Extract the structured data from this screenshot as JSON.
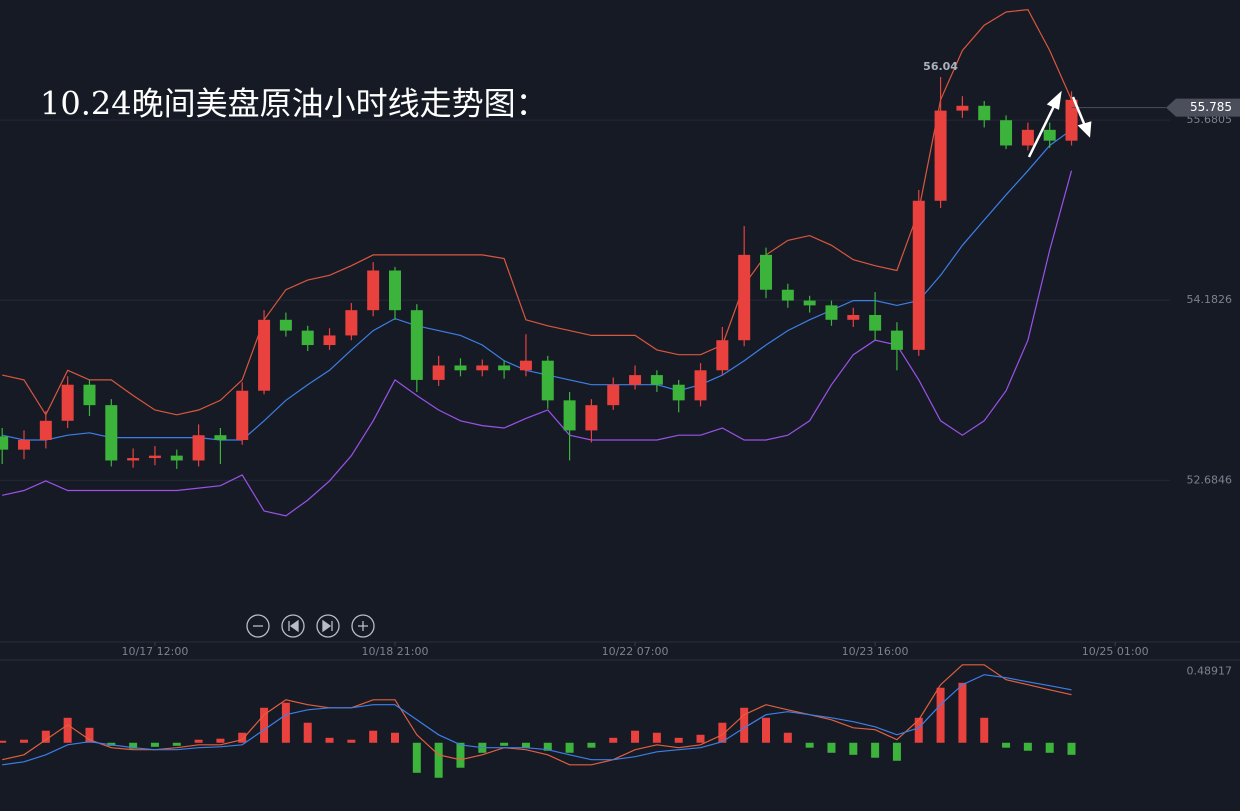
{
  "chart_data": [
    {
      "type": "candlestick",
      "title": "10.24晚间美盘原油小时线走势图：",
      "up_color": "#e8413e",
      "down_color": "#3cb43c",
      "open": [
        53.05,
        52.94,
        53.02,
        53.18,
        53.48,
        53.31,
        52.85,
        52.87,
        52.89,
        52.85,
        53.06,
        53.02,
        53.43,
        54.02,
        53.93,
        53.81,
        53.89,
        54.1,
        54.43,
        54.1,
        53.52,
        53.64,
        53.6,
        53.64,
        53.6,
        53.68,
        53.35,
        53.1,
        53.31,
        53.48,
        53.56,
        53.48,
        53.35,
        53.6,
        53.85,
        54.56,
        54.27,
        54.18,
        54.14,
        54.02,
        54.06,
        53.93,
        53.77,
        55.01,
        55.76,
        55.8,
        55.68,
        55.47,
        55.6,
        55.51
      ],
      "high": [
        53.12,
        53.1,
        53.26,
        53.55,
        53.52,
        53.36,
        52.95,
        52.97,
        52.94,
        53.15,
        53.12,
        53.5,
        54.1,
        54.08,
        53.97,
        53.95,
        54.16,
        54.5,
        54.46,
        54.15,
        53.72,
        53.7,
        53.69,
        53.68,
        53.9,
        53.72,
        53.42,
        53.36,
        53.54,
        53.64,
        53.6,
        53.52,
        53.66,
        53.96,
        54.8,
        54.62,
        54.32,
        54.22,
        54.18,
        54.12,
        54.25,
        54.0,
        55.1,
        56.04,
        55.88,
        55.84,
        55.72,
        55.66,
        55.66,
        55.92
      ],
      "low": [
        52.82,
        52.86,
        52.95,
        53.12,
        53.22,
        52.8,
        52.79,
        52.81,
        52.78,
        52.8,
        52.82,
        52.98,
        53.4,
        53.88,
        53.76,
        53.77,
        53.85,
        54.05,
        54.02,
        53.42,
        53.47,
        53.55,
        53.55,
        53.53,
        53.55,
        53.28,
        52.85,
        53.0,
        53.27,
        53.44,
        53.42,
        53.25,
        53.3,
        53.56,
        53.8,
        54.2,
        54.12,
        54.08,
        53.97,
        53.96,
        53.85,
        53.6,
        53.72,
        54.95,
        55.7,
        55.62,
        55.44,
        55.43,
        55.45,
        55.47
      ],
      "close": [
        52.94,
        53.02,
        53.18,
        53.48,
        53.31,
        52.85,
        52.87,
        52.89,
        52.85,
        53.06,
        53.02,
        53.43,
        54.02,
        53.93,
        53.81,
        53.89,
        54.1,
        54.43,
        54.1,
        53.52,
        53.64,
        53.6,
        53.64,
        53.6,
        53.68,
        53.35,
        53.1,
        53.31,
        53.48,
        53.56,
        53.48,
        53.35,
        53.6,
        53.85,
        54.56,
        54.27,
        54.18,
        54.14,
        54.02,
        54.06,
        53.93,
        53.77,
        55.01,
        55.76,
        55.8,
        55.68,
        55.47,
        55.6,
        55.51,
        55.85
      ],
      "lines": [
        {
          "color": "#d9573e",
          "values": [
            53.56,
            53.52,
            53.23,
            53.6,
            53.52,
            53.52,
            53.39,
            53.27,
            53.23,
            53.27,
            53.35,
            53.52,
            54.02,
            54.27,
            54.35,
            54.39,
            54.47,
            54.56,
            54.56,
            54.56,
            54.56,
            54.56,
            54.56,
            54.53,
            54.02,
            53.97,
            53.93,
            53.89,
            53.89,
            53.89,
            53.77,
            53.73,
            53.73,
            53.81,
            54.31,
            54.56,
            54.68,
            54.72,
            54.64,
            54.52,
            54.47,
            54.43,
            54.93,
            55.85,
            56.26,
            56.47,
            56.58,
            56.6,
            56.26,
            55.85
          ]
        },
        {
          "color": "#3d7fe6",
          "values": [
            53.06,
            53.02,
            53.02,
            53.06,
            53.08,
            53.04,
            53.04,
            53.04,
            53.04,
            53.04,
            53.02,
            53.02,
            53.18,
            53.35,
            53.48,
            53.6,
            53.77,
            53.93,
            54.03,
            53.97,
            53.93,
            53.89,
            53.81,
            53.68,
            53.6,
            53.56,
            53.52,
            53.48,
            53.48,
            53.48,
            53.48,
            53.43,
            53.48,
            53.56,
            53.68,
            53.81,
            53.93,
            54.02,
            54.1,
            54.18,
            54.18,
            54.14,
            54.18,
            54.39,
            54.64,
            54.85,
            55.06,
            55.26,
            55.47,
            55.6
          ]
        },
        {
          "color": "#9a52e8",
          "values": [
            52.56,
            52.6,
            52.68,
            52.6,
            52.6,
            52.6,
            52.6,
            52.6,
            52.6,
            52.62,
            52.64,
            52.73,
            52.43,
            52.39,
            52.52,
            52.68,
            52.89,
            53.18,
            53.52,
            53.39,
            53.27,
            53.18,
            53.14,
            53.12,
            53.2,
            53.27,
            53.06,
            53.02,
            53.02,
            53.02,
            53.02,
            53.06,
            53.06,
            53.12,
            53.02,
            53.02,
            53.06,
            53.18,
            53.48,
            53.73,
            53.85,
            53.81,
            53.52,
            53.18,
            53.06,
            53.18,
            53.43,
            53.85,
            54.6,
            55.26
          ]
        }
      ],
      "high_label": 56.04,
      "last_price": 55.785,
      "xlim": [
        -0.1,
        56.72
      ],
      "xticks": [
        {
          "value": 7,
          "label": "10/17 12:00"
        },
        {
          "value": 18,
          "label": "10/18 21:00"
        },
        {
          "value": 29,
          "label": "10/22 07:00"
        },
        {
          "value": 40,
          "label": "10/23 16:00"
        },
        {
          "value": 51,
          "label": "10/25 01:00"
        }
      ],
      "ylim": [
        51.34,
        56.68
      ],
      "yticks": [
        55.6805,
        54.1826,
        52.6846
      ],
      "grid": true
    },
    {
      "type": "macd",
      "up_color": "#e8413e",
      "down_color": "#3cb43c",
      "histogram": [
        0.014,
        0.021,
        0.083,
        0.172,
        0.103,
        -0.021,
        -0.041,
        -0.028,
        -0.021,
        0.021,
        0.028,
        0.069,
        0.241,
        0.276,
        0.138,
        0.034,
        0.021,
        0.083,
        0.069,
        -0.207,
        -0.241,
        -0.172,
        -0.069,
        -0.021,
        -0.034,
        -0.055,
        -0.069,
        -0.034,
        0.034,
        0.083,
        0.069,
        0.034,
        0.055,
        0.138,
        0.241,
        0.172,
        0.069,
        -0.034,
        -0.069,
        -0.083,
        -0.103,
        -0.124,
        0.172,
        0.379,
        0.413,
        0.172,
        -0.034,
        -0.055,
        -0.069,
        -0.083
      ],
      "lines": [
        {
          "color": "#e0603f",
          "values": [
            -0.117,
            -0.083,
            0.021,
            0.124,
            0.021,
            -0.034,
            -0.048,
            -0.048,
            -0.034,
            -0.014,
            -0.014,
            0.021,
            0.193,
            0.296,
            0.262,
            0.241,
            0.241,
            0.296,
            0.296,
            0.055,
            -0.083,
            -0.117,
            -0.083,
            -0.034,
            -0.048,
            -0.083,
            -0.152,
            -0.152,
            -0.117,
            -0.048,
            -0.014,
            -0.034,
            -0.014,
            0.055,
            0.193,
            0.262,
            0.227,
            0.193,
            0.158,
            0.103,
            0.09,
            0.021,
            0.158,
            0.4,
            0.537,
            0.537,
            0.434,
            0.4,
            0.365,
            0.331
          ]
        },
        {
          "color": "#3d7fe6",
          "values": [
            -0.152,
            -0.131,
            -0.083,
            -0.014,
            0.007,
            -0.014,
            -0.034,
            -0.048,
            -0.048,
            -0.034,
            -0.028,
            -0.014,
            0.09,
            0.193,
            0.227,
            0.241,
            0.241,
            0.262,
            0.262,
            0.158,
            0.055,
            -0.014,
            -0.034,
            -0.034,
            -0.034,
            -0.048,
            -0.083,
            -0.117,
            -0.117,
            -0.096,
            -0.062,
            -0.048,
            -0.034,
            0.007,
            0.103,
            0.193,
            0.214,
            0.193,
            0.172,
            0.145,
            0.11,
            0.055,
            0.103,
            0.262,
            0.4,
            0.469,
            0.448,
            0.42,
            0.393,
            0.365
          ]
        }
      ],
      "xlim": [
        -0.1,
        56.72
      ],
      "ylim": [
        -0.47,
        0.57
      ],
      "yticks": [
        0.48917
      ]
    }
  ]
}
